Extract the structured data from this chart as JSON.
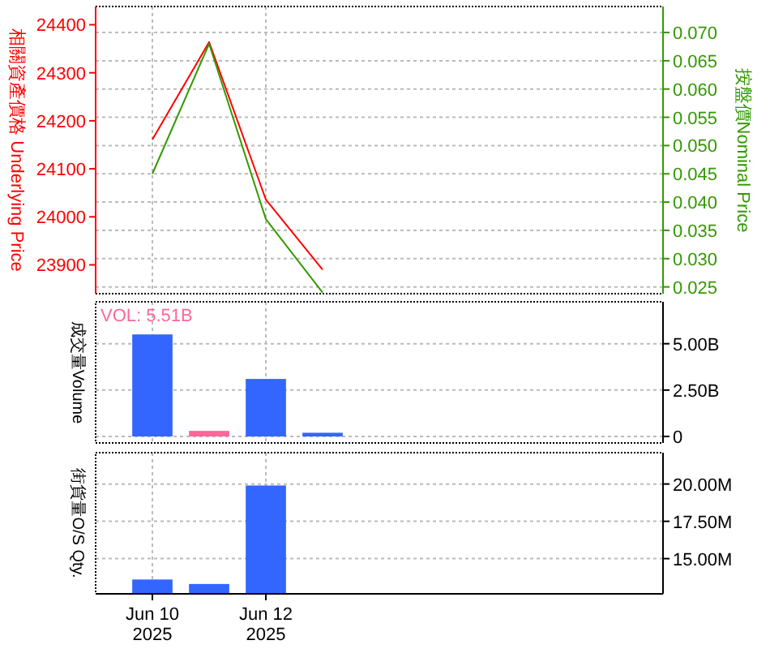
{
  "chart_data": [
    {
      "type": "line",
      "x": [
        "2025-06-10",
        "2025-06-11",
        "2025-06-12",
        "2025-06-13"
      ],
      "xlim": [
        "2025-06-09",
        "2025-06-19"
      ],
      "series": [
        {
          "color": "#ff0000",
          "values": [
            24161,
            24364,
            24036,
            23890
          ]
        },
        {
          "color": "#339900",
          "axis": "y2",
          "values": [
            0.045,
            0.068,
            0.037,
            0.024
          ]
        }
      ],
      "ylim": [
        23840,
        24438
      ],
      "yticks": [
        23900,
        24000,
        24100,
        24200,
        24300,
        24400
      ],
      "y2lim": [
        0.0238,
        0.0746
      ],
      "y2ticks": [
        0.025,
        {
          "value": 0.03,
          "label": "0.030"
        },
        0.035,
        {
          "value": 0.04,
          "label": "0.040"
        },
        0.045,
        {
          "value": 0.05,
          "label": "0.050"
        },
        0.055,
        {
          "value": 0.06,
          "label": "0.060"
        },
        0.065,
        {
          "value": 0.07,
          "label": "0.070"
        }
      ],
      "ylabel": "相關資產價格 Underlying Price",
      "y2label": "按盤價Nominal Price",
      "grid": true,
      "tick_labels": "y"
    },
    {
      "type": "bar",
      "x": [
        "2025-06-10",
        "2025-06-11",
        "2025-06-12",
        "2025-06-13"
      ],
      "xlim": [
        "2025-06-09",
        "2025-06-19"
      ],
      "values": [
        5.5,
        0.3,
        3.1,
        0.2
      ],
      "colors": [
        "#3366ff",
        "#ff6699",
        "#3366ff",
        "#3366ff"
      ],
      "ylim": [
        -0.35,
        7.26
      ],
      "yticks": [
        0,
        {
          "value": 2.5,
          "label": "2.50B"
        },
        {
          "value": 5,
          "label": "5.00B"
        }
      ],
      "ylabel": "成交量Volume",
      "annotations": [
        "VOL: 5.51B"
      ],
      "grid": true,
      "tick_labels": "y"
    },
    {
      "type": "bar",
      "x": [
        "2025-06-10",
        "2025-06-11",
        "2025-06-12"
      ],
      "xlim": [
        "2025-06-09",
        "2025-06-19"
      ],
      "values": [
        13.6,
        13.3,
        19.9
      ],
      "colors": [
        "#3366ff",
        "#3366ff",
        "#3366ff"
      ],
      "ylim": [
        12.64,
        22.1
      ],
      "yticks": [
        {
          "value": 15,
          "label": "15.00M"
        },
        {
          "value": 17.5,
          "label": "17.50M"
        },
        {
          "value": 20,
          "label": "20.00M"
        }
      ],
      "xticks": [
        {
          "value": "2025-06-10",
          "label": "Jun 10\n2025"
        },
        {
          "value": "2025-06-12",
          "label": "Jun 12\n2025"
        }
      ],
      "ylabel": "街貨量O/S Qty.",
      "grid": true
    }
  ]
}
